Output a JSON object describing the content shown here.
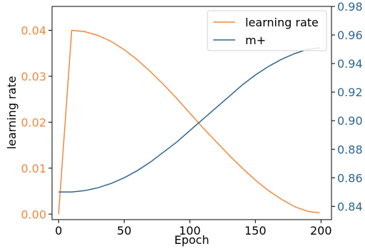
{
  "chart_data": {
    "type": "line",
    "title": "",
    "xlabel": "Epoch",
    "ylabel": "learning rate",
    "y2label": "",
    "xlim": [
      -5,
      208
    ],
    "ylim": [
      -0.0012,
      0.0452
    ],
    "y2lim": [
      0.8307,
      0.98
    ],
    "xticks": [
      "0",
      "50",
      "100",
      "150",
      "200"
    ],
    "yticks": [
      "0.00",
      "0.01",
      "0.02",
      "0.03",
      "0.04"
    ],
    "y2ticks": [
      "0.84",
      "0.86",
      "0.88",
      "0.90",
      "0.92",
      "0.94",
      "0.96",
      "0.98"
    ],
    "grid": false,
    "legend_position": "top-right",
    "colors": {
      "learning_rate": "#f0883e",
      "m_plus": "#2e6591",
      "axis": "#000000"
    },
    "series": [
      {
        "name": "learning rate",
        "axis": "left",
        "color": "#f0883e",
        "x": [
          0,
          10,
          20,
          30,
          40,
          50,
          60,
          70,
          80,
          90,
          100,
          110,
          120,
          130,
          140,
          150,
          160,
          170,
          180,
          190,
          195,
          199
        ],
        "y": [
          0.0,
          0.04,
          0.0397,
          0.0389,
          0.0376,
          0.0358,
          0.0336,
          0.031,
          0.0282,
          0.0252,
          0.022,
          0.0188,
          0.0158,
          0.0128,
          0.01,
          0.0074,
          0.0051,
          0.0032,
          0.0016,
          0.0006,
          0.0004,
          0.0003
        ]
      },
      {
        "name": "m+",
        "axis": "right",
        "color": "#2e6591",
        "x": [
          0,
          10,
          20,
          30,
          40,
          50,
          60,
          70,
          80,
          90,
          100,
          110,
          120,
          130,
          140,
          150,
          160,
          170,
          180,
          190,
          199
        ],
        "y": [
          0.85,
          0.85,
          0.851,
          0.853,
          0.856,
          0.86,
          0.865,
          0.871,
          0.878,
          0.885,
          0.893,
          0.901,
          0.909,
          0.917,
          0.925,
          0.932,
          0.938,
          0.943,
          0.947,
          0.95,
          0.951
        ]
      }
    ]
  }
}
